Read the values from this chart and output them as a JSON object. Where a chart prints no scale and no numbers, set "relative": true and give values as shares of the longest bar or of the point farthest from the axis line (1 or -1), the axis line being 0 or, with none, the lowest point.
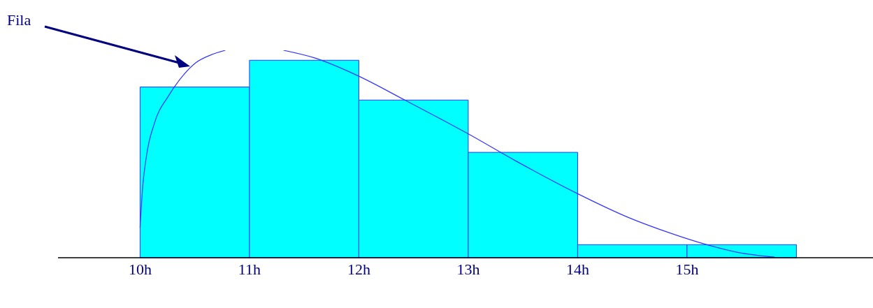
{
  "chart_data": {
    "type": "histogram",
    "relative": true,
    "bins": [
      10,
      11,
      12,
      13,
      14,
      15,
      16
    ],
    "values": [
      0.823,
      0.952,
      0.76,
      0.508,
      0.063,
      0.063
    ],
    "color": "#00ffff",
    "series": [
      {
        "type": "line",
        "color": "#3333ff",
        "x": [
          10.0,
          10.02,
          10.06,
          10.13,
          10.26,
          10.38,
          10.51,
          10.64,
          10.78,
          11.05,
          11.31,
          11.59,
          11.98,
          12.42,
          12.99,
          13.44,
          14.01,
          14.46,
          14.84,
          15.16,
          15.48,
          15.8
        ],
        "values": [
          0.144,
          0.315,
          0.495,
          0.646,
          0.78,
          0.87,
          0.94,
          0.976,
          1,
          null,
          1,
          0.964,
          0.88,
          0.76,
          0.6,
          0.465,
          0.306,
          0.195,
          0.12,
          0.066,
          0.024,
          0.003
        ]
      }
    ],
    "xlim": [
      9.25,
      16.7
    ],
    "xticks": [
      {
        "value": 10,
        "label": "10h"
      },
      {
        "value": 11,
        "label": "11h"
      },
      {
        "value": 12,
        "label": "12h"
      },
      {
        "value": 13,
        "label": "13h"
      },
      {
        "value": 14,
        "label": "14h"
      },
      {
        "value": 15,
        "label": "15h"
      }
    ],
    "tick_labels": "x",
    "grid": false,
    "marker": "none",
    "annotations": [
      "Fila"
    ]
  }
}
